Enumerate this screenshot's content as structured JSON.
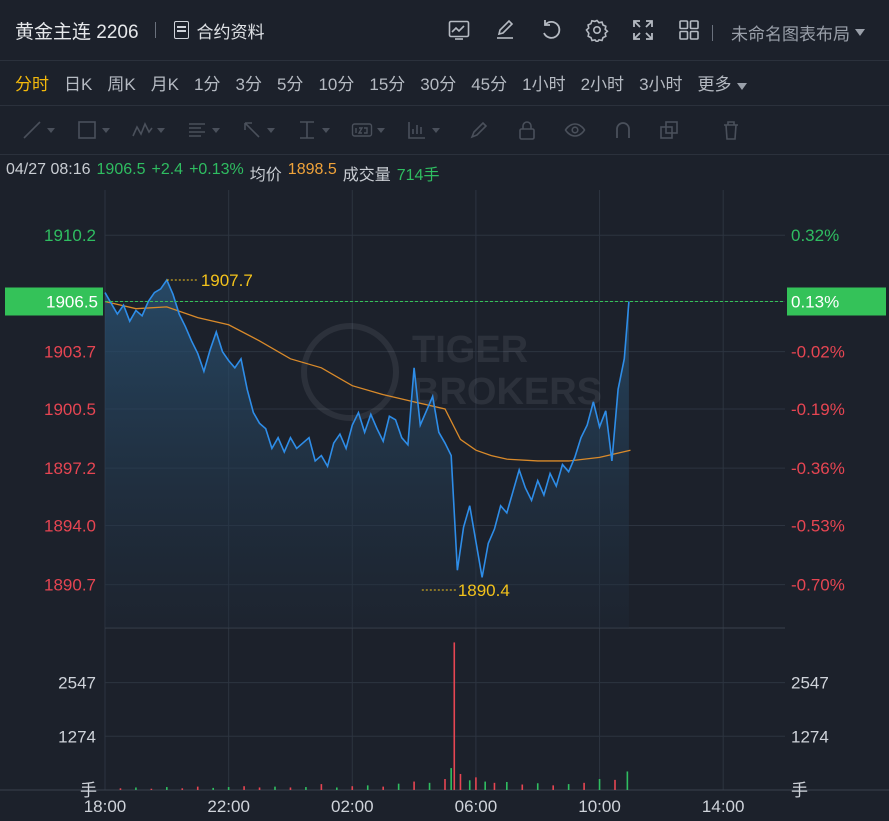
{
  "header": {
    "title": "黄金主连 2206",
    "contract_label": "合约资料",
    "layout_label": "未命名图表布局",
    "icons": [
      "chart-template-icon",
      "edit-icon",
      "undo-icon",
      "settings-icon",
      "fullscreen-icon",
      "grid-layout-icon"
    ]
  },
  "periods": [
    "分时",
    "日K",
    "周K",
    "月K",
    "1分",
    "3分",
    "5分",
    "10分",
    "15分",
    "30分",
    "45分",
    "1小时",
    "2小时",
    "3小时",
    "更多"
  ],
  "active_period": "分时",
  "drawing_tools": [
    "line-tool-icon",
    "rect-tool-icon",
    "wave-tool-icon",
    "fib-tool-icon",
    "arrow-tool-icon",
    "measure-tool-icon",
    "text-tool-icon",
    "indicator-tool-icon",
    "brush-icon",
    "lock-icon",
    "eye-icon",
    "magnet-icon",
    "clone-icon",
    "trash-icon"
  ],
  "info": {
    "datetime": "04/27 08:16",
    "price": "1906.5",
    "change": "+2.4",
    "change_pct": "+0.13%",
    "avg_label": "均价",
    "avg_value": "1898.5",
    "vol_label": "成交量",
    "vol_value": "714手"
  },
  "colors": {
    "up": "#2fbd61",
    "down": "#e64552",
    "price_line": "#2e8de8",
    "avg_line": "#d98a2a",
    "annotation": "#f3c21b",
    "current_badge": "#34c259"
  },
  "chart_data": {
    "type": "line",
    "series": [],
    "x_ticks": [
      "18:00",
      "22:00",
      "02:00",
      "06:00",
      "10:00",
      "14:00"
    ],
    "y_ticks": [
      "1910.2",
      "1906.5",
      "1903.7",
      "1900.5",
      "1897.2",
      "1894.0",
      "1890.7"
    ],
    "pct_ticks": [
      "0.32%",
      "0.13%",
      "-0.02%",
      "-0.19%",
      "-0.36%",
      "-0.53%",
      "-0.70%"
    ],
    "ylim": [
      1888.5,
      1912.5
    ],
    "current": {
      "price": "1906.5",
      "pct": "0.13%"
    },
    "high": {
      "value": "1907.7",
      "time": "20:00"
    },
    "low": {
      "value": "1890.4",
      "time": "04:15"
    },
    "x_start_hours": 18,
    "x_end_hours": 40,
    "price_points": [
      [
        18.0,
        1907.0
      ],
      [
        18.2,
        1906.4
      ],
      [
        18.4,
        1905.8
      ],
      [
        18.6,
        1906.3
      ],
      [
        18.8,
        1905.4
      ],
      [
        19.0,
        1906.0
      ],
      [
        19.2,
        1905.7
      ],
      [
        19.4,
        1906.5
      ],
      [
        19.6,
        1907.0
      ],
      [
        19.8,
        1907.2
      ],
      [
        20.0,
        1907.7
      ],
      [
        20.2,
        1906.9
      ],
      [
        20.4,
        1905.8
      ],
      [
        20.6,
        1905.1
      ],
      [
        20.8,
        1904.3
      ],
      [
        21.0,
        1903.6
      ],
      [
        21.2,
        1902.6
      ],
      [
        21.4,
        1903.8
      ],
      [
        21.6,
        1904.8
      ],
      [
        21.8,
        1903.7
      ],
      [
        22.0,
        1903.2
      ],
      [
        22.2,
        1902.8
      ],
      [
        22.4,
        1903.3
      ],
      [
        22.6,
        1901.6
      ],
      [
        22.8,
        1900.3
      ],
      [
        23.0,
        1899.7
      ],
      [
        23.2,
        1899.4
      ],
      [
        23.4,
        1898.3
      ],
      [
        23.6,
        1898.9
      ],
      [
        23.8,
        1898.1
      ],
      [
        24.0,
        1898.9
      ],
      [
        24.2,
        1898.3
      ],
      [
        24.4,
        1898.6
      ],
      [
        24.6,
        1898.9
      ],
      [
        24.8,
        1897.6
      ],
      [
        25.0,
        1897.9
      ],
      [
        25.2,
        1897.3
      ],
      [
        25.4,
        1898.6
      ],
      [
        25.6,
        1899.1
      ],
      [
        25.8,
        1898.3
      ],
      [
        26.0,
        1899.6
      ],
      [
        26.2,
        1900.3
      ],
      [
        26.4,
        1899.2
      ],
      [
        26.6,
        1900.2
      ],
      [
        26.8,
        1899.4
      ],
      [
        27.0,
        1898.7
      ],
      [
        27.2,
        1900.1
      ],
      [
        27.4,
        1899.9
      ],
      [
        27.6,
        1898.9
      ],
      [
        27.8,
        1898.5
      ],
      [
        28.0,
        1902.8
      ],
      [
        28.2,
        1899.6
      ],
      [
        28.4,
        1900.4
      ],
      [
        28.6,
        1901.2
      ],
      [
        28.8,
        1899.2
      ],
      [
        29.0,
        1898.6
      ],
      [
        29.2,
        1897.9
      ],
      [
        29.4,
        1891.5
      ],
      [
        29.6,
        1893.9
      ],
      [
        29.8,
        1895.1
      ],
      [
        30.0,
        1893.1
      ],
      [
        30.2,
        1891.1
      ],
      [
        30.4,
        1893.0
      ],
      [
        30.6,
        1893.8
      ],
      [
        30.8,
        1895.1
      ],
      [
        31.0,
        1894.7
      ],
      [
        31.2,
        1895.9
      ],
      [
        31.4,
        1897.1
      ],
      [
        31.6,
        1896.1
      ],
      [
        31.8,
        1895.4
      ],
      [
        32.0,
        1896.5
      ],
      [
        32.2,
        1895.7
      ],
      [
        32.4,
        1896.9
      ],
      [
        32.6,
        1896.2
      ],
      [
        32.8,
        1897.4
      ],
      [
        33.0,
        1897.0
      ],
      [
        33.2,
        1897.8
      ],
      [
        33.4,
        1898.9
      ],
      [
        33.6,
        1899.6
      ],
      [
        33.8,
        1900.9
      ],
      [
        34.0,
        1899.5
      ],
      [
        34.2,
        1900.4
      ],
      [
        34.4,
        1897.6
      ],
      [
        34.6,
        1901.6
      ],
      [
        34.8,
        1903.3
      ],
      [
        34.95,
        1906.5
      ]
    ],
    "avg_points": [
      [
        18.0,
        1906.5
      ],
      [
        19.0,
        1906.1
      ],
      [
        20.0,
        1906.2
      ],
      [
        21.0,
        1905.6
      ],
      [
        22.0,
        1905.2
      ],
      [
        23.0,
        1904.3
      ],
      [
        24.0,
        1903.3
      ],
      [
        25.0,
        1902.8
      ],
      [
        26.0,
        1901.8
      ],
      [
        27.0,
        1901.3
      ],
      [
        28.0,
        1900.9
      ],
      [
        29.0,
        1900.5
      ],
      [
        29.5,
        1898.8
      ],
      [
        30.0,
        1898.2
      ],
      [
        30.5,
        1897.9
      ],
      [
        31.0,
        1897.7
      ],
      [
        32.0,
        1897.6
      ],
      [
        33.0,
        1897.6
      ],
      [
        34.0,
        1897.8
      ],
      [
        35.0,
        1898.2
      ]
    ],
    "volume": {
      "y_ticks": [
        "2547",
        "1274"
      ],
      "unit": "手",
      "ylim": [
        0,
        3700
      ],
      "bars": [
        [
          18.5,
          40,
          "down"
        ],
        [
          19.0,
          60,
          "up"
        ],
        [
          19.5,
          30,
          "down"
        ],
        [
          20.0,
          70,
          "up"
        ],
        [
          20.5,
          40,
          "down"
        ],
        [
          21.0,
          80,
          "down"
        ],
        [
          21.5,
          50,
          "up"
        ],
        [
          22.0,
          70,
          "up"
        ],
        [
          22.5,
          90,
          "down"
        ],
        [
          23.0,
          60,
          "down"
        ],
        [
          23.5,
          80,
          "up"
        ],
        [
          24.0,
          60,
          "down"
        ],
        [
          24.5,
          70,
          "up"
        ],
        [
          25.0,
          140,
          "down"
        ],
        [
          25.5,
          60,
          "up"
        ],
        [
          26.0,
          90,
          "down"
        ],
        [
          26.5,
          110,
          "up"
        ],
        [
          27.0,
          80,
          "down"
        ],
        [
          27.5,
          150,
          "up"
        ],
        [
          28.0,
          200,
          "down"
        ],
        [
          28.5,
          170,
          "up"
        ],
        [
          29.0,
          260,
          "down"
        ],
        [
          29.2,
          520,
          "up"
        ],
        [
          29.3,
          3500,
          "down"
        ],
        [
          29.5,
          380,
          "down"
        ],
        [
          29.8,
          230,
          "up"
        ],
        [
          30.0,
          300,
          "down"
        ],
        [
          30.3,
          200,
          "up"
        ],
        [
          30.6,
          170,
          "down"
        ],
        [
          31.0,
          190,
          "up"
        ],
        [
          31.5,
          130,
          "down"
        ],
        [
          32.0,
          160,
          "up"
        ],
        [
          32.5,
          110,
          "down"
        ],
        [
          33.0,
          140,
          "up"
        ],
        [
          33.5,
          170,
          "down"
        ],
        [
          34.0,
          260,
          "up"
        ],
        [
          34.5,
          240,
          "down"
        ],
        [
          34.9,
          440,
          "up"
        ]
      ]
    }
  }
}
